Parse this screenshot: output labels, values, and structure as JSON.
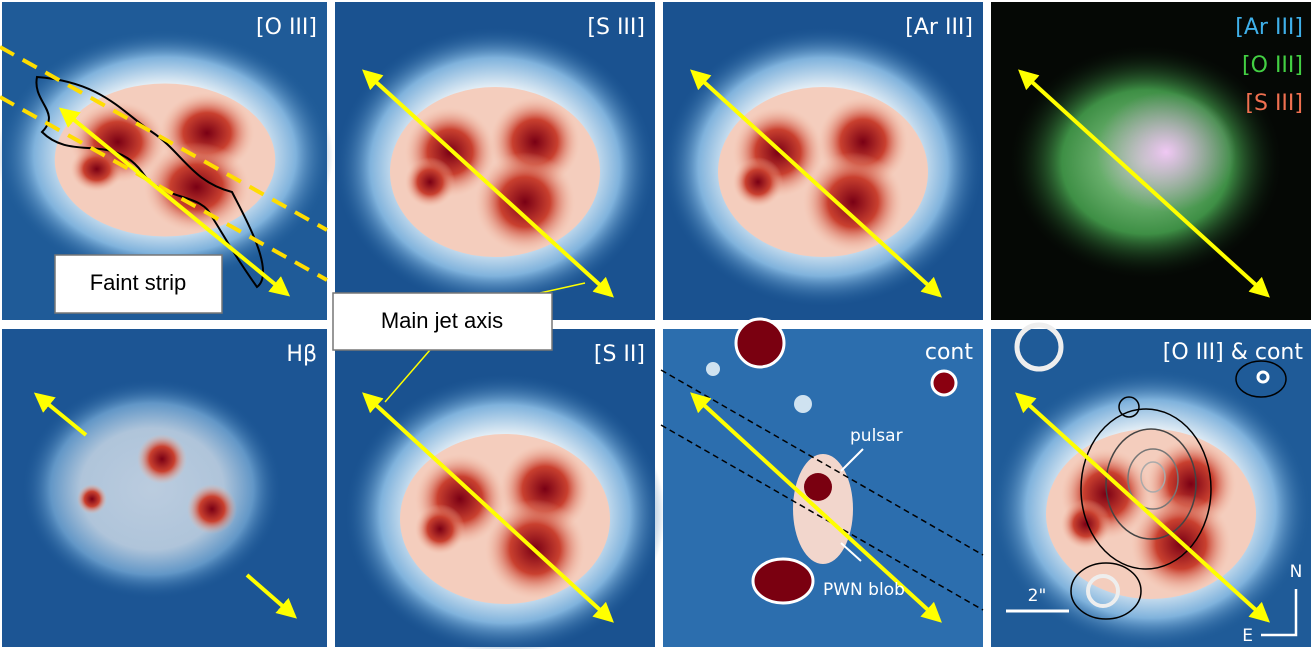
{
  "panels": [
    {
      "label": "[O III]"
    },
    {
      "label": "[S III]"
    },
    {
      "label": "[Ar III]"
    },
    {
      "legend": [
        "[Ar III]",
        "[O III]",
        "[S III]"
      ]
    },
    {
      "label": "Hβ"
    },
    {
      "label": "[S II]"
    },
    {
      "label": "cont"
    },
    {
      "label": "[O III] & cont"
    }
  ],
  "annotations": {
    "faint_strip": "Faint strip",
    "main_jet_axis": "Main jet axis",
    "pulsar": "pulsar",
    "pwn_blob": "PWN blob",
    "scale_bar": "2\"",
    "north": "N",
    "east": "E"
  }
}
